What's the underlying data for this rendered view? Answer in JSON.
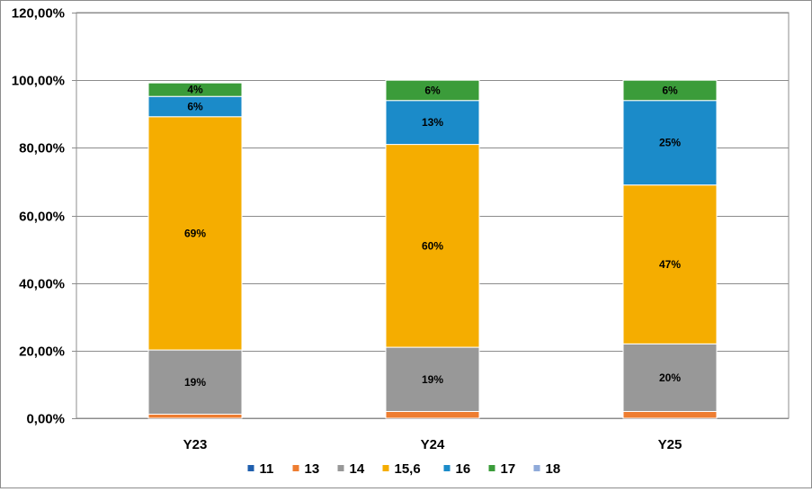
{
  "chart_data": {
    "type": "bar",
    "stacked": true,
    "categories": [
      "Y23",
      "Y24",
      "Y25"
    ],
    "ylim": [
      0,
      120
    ],
    "ytick_values": [
      0,
      20,
      40,
      60,
      80,
      100,
      120
    ],
    "ytick_labels": [
      "0,00%",
      "20,00%",
      "40,00%",
      "60,00%",
      "80,00%",
      "100,00%",
      "120,00%"
    ],
    "grid": true,
    "legend_position": "bottom",
    "series": [
      {
        "name": "11",
        "color": "#1f5fae",
        "values": [
          0,
          0,
          0
        ],
        "labels": [
          "",
          "",
          ""
        ]
      },
      {
        "name": "13",
        "color": "#ee7d31",
        "values": [
          1.2,
          2,
          2
        ],
        "labels": [
          "",
          "",
          ""
        ]
      },
      {
        "name": "14",
        "color": "#989898",
        "values": [
          19,
          19,
          20
        ],
        "labels": [
          "19%",
          "19%",
          "20%"
        ]
      },
      {
        "name": "15,6",
        "color": "#f5ad00",
        "values": [
          69,
          60,
          47
        ],
        "labels": [
          "69%",
          "60%",
          "47%"
        ]
      },
      {
        "name": "16",
        "color": "#1b8bc9",
        "values": [
          6,
          13,
          25
        ],
        "labels": [
          "6%",
          "13%",
          "25%"
        ]
      },
      {
        "name": "17",
        "color": "#3b9c3a",
        "values": [
          4,
          6,
          6
        ],
        "labels": [
          "4%",
          "6%",
          "6%"
        ]
      },
      {
        "name": "18",
        "color": "#8faad9",
        "values": [
          0,
          0,
          0
        ],
        "labels": [
          "",
          "",
          ""
        ]
      }
    ]
  }
}
